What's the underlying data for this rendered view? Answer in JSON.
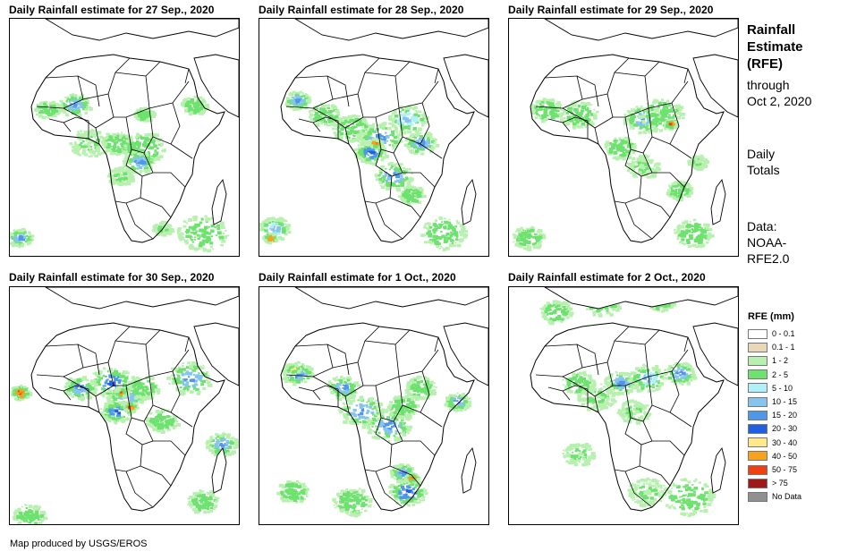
{
  "panels": [
    {
      "title": "Daily Rainfall estimate for 27 Sep., 2020",
      "day": 0
    },
    {
      "title": "Daily Rainfall estimate for 28 Sep., 2020",
      "day": 1
    },
    {
      "title": "Daily Rainfall estimate for 29 Sep., 2020",
      "day": 2
    },
    {
      "title": "Daily Rainfall estimate for 30 Sep., 2020",
      "day": 3
    },
    {
      "title": "Daily Rainfall estimate for 1 Oct., 2020",
      "day": 4
    },
    {
      "title": "Daily Rainfall estimate for 2 Oct., 2020",
      "day": 5
    }
  ],
  "side": {
    "title_line1": "Rainfall",
    "title_line2": "Estimate",
    "title_line3": "(RFE)",
    "through_line1": "through",
    "through_line2": "Oct 2, 2020",
    "daily_line1": "Daily",
    "daily_line2": "Totals",
    "data_line1": "Data:",
    "data_line2": "NOAA-",
    "data_line3": "RFE2.0"
  },
  "legend": {
    "title": "RFE (mm)",
    "items": [
      {
        "label": "0 - 0.1",
        "color": "#ffffff"
      },
      {
        "label": "0.1 - 1",
        "color": "#e8d8b8"
      },
      {
        "label": "1 - 2",
        "color": "#b8f0b0"
      },
      {
        "label": "2 - 5",
        "color": "#6ee26e"
      },
      {
        "label": "5 - 10",
        "color": "#b0f0f8"
      },
      {
        "label": "10 - 15",
        "color": "#86c4ee"
      },
      {
        "label": "15 - 20",
        "color": "#4f98e8"
      },
      {
        "label": "20 - 30",
        "color": "#1f5fe0"
      },
      {
        "label": "30 - 40",
        "color": "#ffe98a"
      },
      {
        "label": "40 - 50",
        "color": "#f7a21c"
      },
      {
        "label": "50 - 75",
        "color": "#f04010"
      },
      {
        "label": "> 75",
        "color": "#a01818"
      },
      {
        "label": "No Data",
        "color": "#909090"
      }
    ]
  },
  "footer": "Map produced by USGS/EROS"
}
